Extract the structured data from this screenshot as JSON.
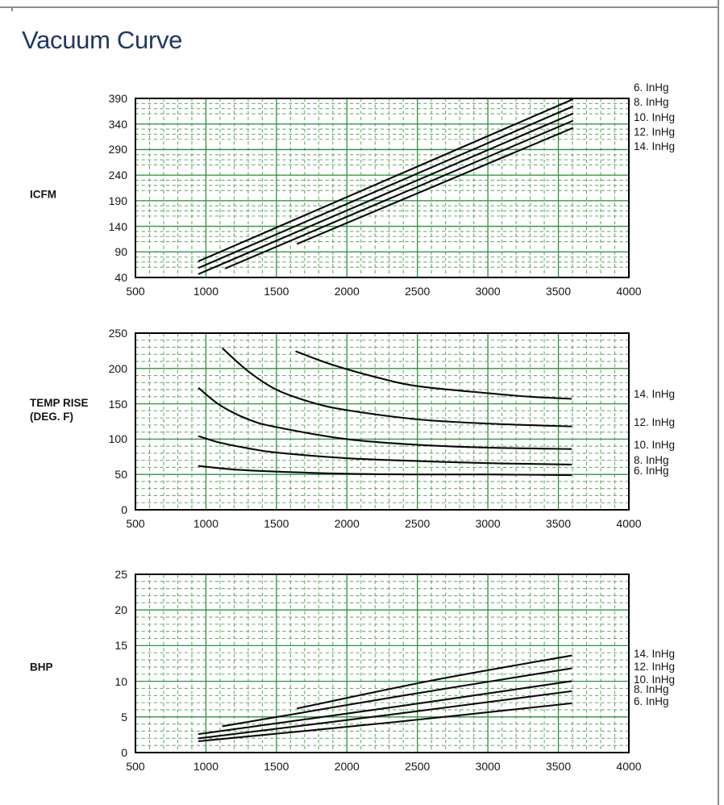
{
  "title": "Vacuum Curve",
  "colors": {
    "title": "#1f3864",
    "page_border": "#8c8c8c",
    "grid_major": "#2e9140",
    "grid_minor": "#68ae68",
    "curve": "#0a0a0a",
    "frame": "#000000",
    "text": "#141414"
  },
  "chart_data": [
    {
      "type": "line",
      "row_label": "ICFM",
      "x_range": [
        500,
        4000
      ],
      "y_range": [
        40,
        390
      ],
      "x_ticks": [
        500,
        1000,
        1500,
        2000,
        2500,
        3000,
        3500,
        4000
      ],
      "y_ticks": [
        40,
        90,
        140,
        190,
        240,
        290,
        340,
        390
      ],
      "x_minor_step": 100,
      "y_minor_step": 10,
      "grid": "on",
      "series": [
        {
          "name": "6. InHg",
          "points": [
            [
              950,
              72
            ],
            [
              3600,
              388
            ]
          ]
        },
        {
          "name": "8. InHg",
          "points": [
            [
              950,
              59
            ],
            [
              3600,
              374
            ]
          ]
        },
        {
          "name": "10. InHg",
          "points": [
            [
              950,
              47
            ],
            [
              3600,
              360
            ]
          ]
        },
        {
          "name": "12. InHg",
          "points": [
            [
              1140,
              58
            ],
            [
              3600,
              346
            ]
          ]
        },
        {
          "name": "14. InHg",
          "points": [
            [
              1650,
              106
            ],
            [
              3600,
              332
            ]
          ]
        }
      ],
      "legend": {
        "position": "right",
        "mode": "stack",
        "order": [
          "6. InHg",
          "8. InHg",
          "10. InHg",
          "12. InHg",
          "14. InHg"
        ]
      }
    },
    {
      "type": "line",
      "row_label": "TEMP RISE\n(DEG. F)",
      "x_range": [
        500,
        4000
      ],
      "y_range": [
        0,
        250
      ],
      "x_ticks": [
        500,
        1000,
        1500,
        2000,
        2500,
        3000,
        3500,
        4000
      ],
      "y_ticks": [
        0,
        50,
        100,
        150,
        200,
        250
      ],
      "x_minor_step": 100,
      "y_minor_step": 10,
      "grid": "on",
      "series": [
        {
          "name": "14. InHg",
          "points": [
            [
              1640,
              224
            ],
            [
              1900,
              205
            ],
            [
              2200,
              188
            ],
            [
              2500,
              175
            ],
            [
              3000,
              165
            ],
            [
              3300,
              160
            ],
            [
              3590,
              157
            ]
          ]
        },
        {
          "name": "12. InHg",
          "points": [
            [
              1120,
              228
            ],
            [
              1300,
              196
            ],
            [
              1500,
              170
            ],
            [
              1750,
              152
            ],
            [
              2000,
              141
            ],
            [
              2500,
              128
            ],
            [
              3000,
              122
            ],
            [
              3590,
              118
            ]
          ]
        },
        {
          "name": "10. InHg",
          "points": [
            [
              950,
              172
            ],
            [
              1100,
              148
            ],
            [
              1300,
              128
            ],
            [
              1500,
              117
            ],
            [
              2000,
              100
            ],
            [
              2500,
              92
            ],
            [
              3000,
              88
            ],
            [
              3590,
              86
            ]
          ]
        },
        {
          "name": "8. InHg",
          "points": [
            [
              950,
              104
            ],
            [
              1100,
              95
            ],
            [
              1300,
              87
            ],
            [
              1500,
              81
            ],
            [
              2000,
              73
            ],
            [
              2500,
              69
            ],
            [
              3000,
              66
            ],
            [
              3590,
              64
            ]
          ]
        },
        {
          "name": "6. InHg",
          "points": [
            [
              950,
              62
            ],
            [
              1200,
              57
            ],
            [
              1500,
              54
            ],
            [
              2000,
              51
            ],
            [
              2500,
              50
            ],
            [
              3000,
              50
            ],
            [
              3590,
              49
            ]
          ]
        }
      ],
      "legend": {
        "position": "right",
        "mode": "curve_end",
        "order": [
          "14. InHg",
          "12. InHg",
          "10. InHg",
          "8. InHg",
          "6. InHg"
        ]
      }
    },
    {
      "type": "line",
      "row_label": "BHP",
      "x_range": [
        500,
        4000
      ],
      "y_range": [
        0,
        25
      ],
      "x_ticks": [
        500,
        1000,
        1500,
        2000,
        2500,
        3000,
        3500,
        4000
      ],
      "y_ticks": [
        0,
        5,
        10,
        15,
        20,
        25
      ],
      "x_minor_step": 100,
      "y_minor_step": 1,
      "grid": "on",
      "series": [
        {
          "name": "14. InHg",
          "points": [
            [
              1650,
              6.2
            ],
            [
              2600,
              10.1
            ],
            [
              3590,
              13.6
            ]
          ]
        },
        {
          "name": "12. InHg",
          "points": [
            [
              1120,
              3.7
            ],
            [
              2400,
              8.0
            ],
            [
              3590,
              11.8
            ]
          ]
        },
        {
          "name": "10. InHg",
          "points": [
            [
              950,
              2.6
            ],
            [
              2300,
              6.3
            ],
            [
              3590,
              10.0
            ]
          ]
        },
        {
          "name": "8. InHg",
          "points": [
            [
              950,
              2.0
            ],
            [
              2300,
              5.3
            ],
            [
              3590,
              8.6
            ]
          ]
        },
        {
          "name": "6. InHg",
          "points": [
            [
              950,
              1.6
            ],
            [
              2300,
              4.2
            ],
            [
              3590,
              6.9
            ]
          ]
        }
      ],
      "legend": {
        "position": "right",
        "mode": "curve_end",
        "order": [
          "14. InHg",
          "12. InHg",
          "10. InHg",
          "8. InHg",
          "6. InHg"
        ]
      }
    }
  ]
}
